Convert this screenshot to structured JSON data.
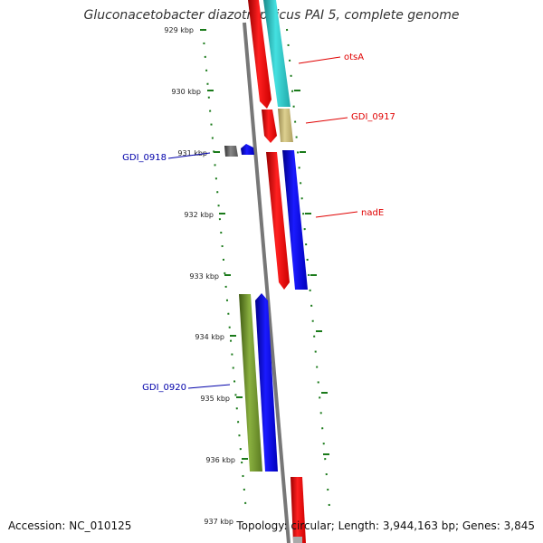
{
  "title": "Gluconacetobacter diazotrophicus PAI 5, complete genome",
  "footer": {
    "accession": "Accession: NC_010125",
    "summary": "Topology: circular; Length: 3,944,163 bp; Genes: 3,845"
  },
  "ticks": [
    "929 kbp",
    "930 kbp",
    "931 kbp",
    "932 kbp",
    "933 kbp",
    "934 kbp",
    "935 kbp",
    "936 kbp",
    "937 kbp"
  ],
  "labels": [
    {
      "text": "otsA",
      "color": "#e00000"
    },
    {
      "text": "GDI_0917",
      "color": "#e00000"
    },
    {
      "text": "GDI_0918",
      "color": "#0000aa"
    },
    {
      "text": "nadE",
      "color": "#e00000"
    },
    {
      "text": "GDI_0920",
      "color": "#0000aa"
    }
  ],
  "colors": {
    "backbone": "#7a7a7a",
    "tick": "#1a7a1a",
    "red": "#ff0000",
    "cyan": "#33cccc",
    "tan": "#c8b878",
    "gray": "#666666",
    "blue": "#0000ee",
    "olive": "#6b8e23"
  }
}
